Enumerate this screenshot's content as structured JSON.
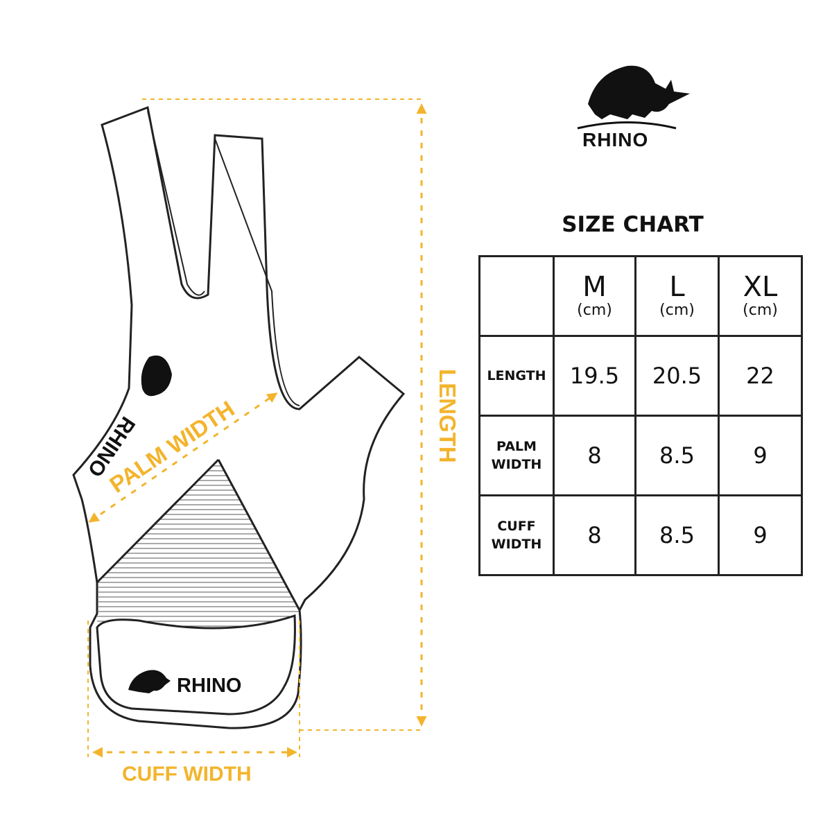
{
  "brand": {
    "logo_text": "RHINO",
    "cuff_logo_text": "RHINO",
    "palm_logo_text": "RHINO"
  },
  "colors": {
    "accent": "#F3B42C",
    "outline": "#222222"
  },
  "labels": {
    "length": "LENGTH",
    "palm_width": "PALM WIDTH",
    "cuff_width": "CUFF WIDTH"
  },
  "size_chart": {
    "title": "SIZE CHART",
    "columns": [
      {
        "size": "M",
        "unit": "(cm)"
      },
      {
        "size": "L",
        "unit": "(cm)"
      },
      {
        "size": "XL",
        "unit": "(cm)"
      }
    ],
    "rows": [
      {
        "label": "LENGTH",
        "values": [
          "19.5",
          "20.5",
          "22"
        ]
      },
      {
        "label_line1": "PALM",
        "label_line2": "WIDTH",
        "values": [
          "8",
          "8.5",
          "9"
        ]
      },
      {
        "label_line1": "CUFF",
        "label_line2": "WIDTH",
        "values": [
          "8",
          "8.5",
          "9"
        ]
      }
    ]
  }
}
